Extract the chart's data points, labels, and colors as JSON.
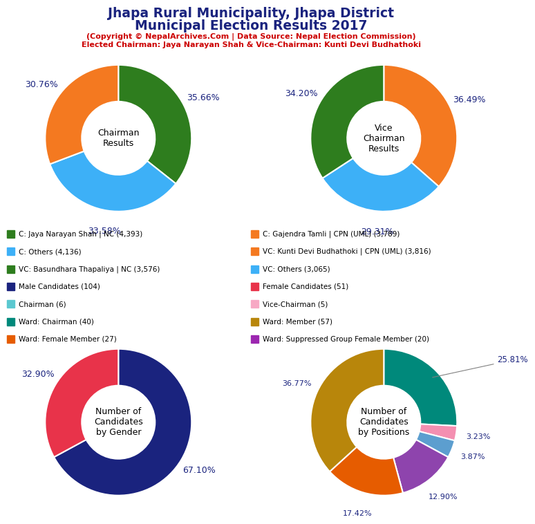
{
  "title_line1": "Jhapa Rural Municipality, Jhapa District",
  "title_line2": "Municipal Election Results 2017",
  "subtitle_line1": "(Copyright © NepalArchives.Com | Data Source: Nepal Election Commission)",
  "subtitle_line2": "Elected Chairman: Jaya Narayan Shah & Vice-Chairman: Kunti Devi Budhathoki",
  "chairman": {
    "label": "Chairman\nResults",
    "values": [
      35.66,
      33.58,
      30.76
    ],
    "colors": [
      "#2e7d1e",
      "#3db0f7",
      "#f47920"
    ],
    "pct_labels": [
      "35.66%",
      "33.58%",
      "30.76%"
    ]
  },
  "vice_chairman": {
    "label": "Vice\nChairman\nResults",
    "values": [
      36.49,
      29.31,
      34.2
    ],
    "colors": [
      "#f47920",
      "#3db0f7",
      "#2e7d1e"
    ],
    "pct_labels": [
      "36.49%",
      "29.31%",
      "34.20%"
    ]
  },
  "gender": {
    "label": "Number of\nCandidates\nby Gender",
    "values": [
      67.1,
      32.9
    ],
    "colors": [
      "#1a237e",
      "#e8334a"
    ],
    "pct_labels": [
      "67.10%",
      "32.90%"
    ]
  },
  "positions": {
    "label": "Number of\nCandidates\nby Positions",
    "values": [
      25.81,
      3.23,
      3.87,
      12.9,
      17.42,
      36.77
    ],
    "colors": [
      "#00897b",
      "#f48fb1",
      "#5c9ecf",
      "#8e44ad",
      "#e65c00",
      "#b8860b"
    ],
    "pct_labels": [
      "25.81%",
      "3.23%",
      "3.87%",
      "12.90%",
      "17.42%",
      "36.77%"
    ]
  },
  "legend_left": [
    {
      "label": "C: Jaya Narayan Shah | NC (4,393)",
      "color": "#2e7d1e"
    },
    {
      "label": "C: Others (4,136)",
      "color": "#3db0f7"
    },
    {
      "label": "VC: Basundhara Thapaliya | NC (3,576)",
      "color": "#2e7d1e"
    },
    {
      "label": "Male Candidates (104)",
      "color": "#1a237e"
    },
    {
      "label": "Chairman (6)",
      "color": "#5bc8d0"
    },
    {
      "label": "Ward: Chairman (40)",
      "color": "#00897b"
    },
    {
      "label": "Ward: Female Member (27)",
      "color": "#e65c00"
    }
  ],
  "legend_right": [
    {
      "label": "C: Gajendra Tamli | CPN (UML) (3,789)",
      "color": "#f47920"
    },
    {
      "label": "VC: Kunti Devi Budhathoki | CPN (UML) (3,816)",
      "color": "#f47920"
    },
    {
      "label": "VC: Others (3,065)",
      "color": "#3db0f7"
    },
    {
      "label": "Female Candidates (51)",
      "color": "#e8334a"
    },
    {
      "label": "Vice-Chairman (5)",
      "color": "#f7a8c4"
    },
    {
      "label": "Ward: Member (57)",
      "color": "#b8860b"
    },
    {
      "label": "Ward: Suppressed Group Female Member (20)",
      "color": "#9c27b0"
    }
  ],
  "title_color": "#1a237e",
  "subtitle_color": "#cc0000",
  "pct_color": "#1a237e"
}
